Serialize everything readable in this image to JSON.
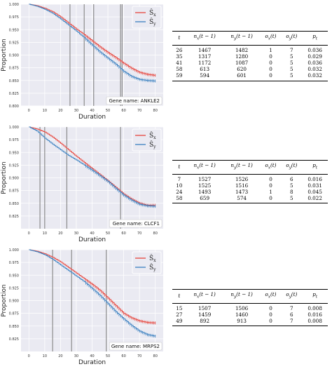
{
  "legend": {
    "x_label": "Ŝ",
    "x_sub": "x",
    "y_label": "Ŝ",
    "y_sub": "y"
  },
  "colors": {
    "x": "#e8453c",
    "y": "#3a80c0",
    "plot_bg": "#eaeaf2",
    "grid": "#ffffff",
    "vline": "#8c8c8c"
  },
  "table_headers": [
    "t",
    "nx(t − 1)",
    "ny(t − 1)",
    "ox(t)",
    "oy(t)",
    "pt"
  ],
  "panels": [
    {
      "gene_label": "Gene name: ANKLE2",
      "table": [
        [
          "26",
          "1467",
          "1482",
          "1",
          "7",
          "0.036"
        ],
        [
          "35",
          "1317",
          "1280",
          "0",
          "5",
          "0.029"
        ],
        [
          "41",
          "1172",
          "1087",
          "0",
          "5",
          "0.036"
        ],
        [
          "58",
          "613",
          "620",
          "0",
          "5",
          "0.032"
        ],
        [
          "59",
          "594",
          "601",
          "0",
          "5",
          "0.032"
        ]
      ]
    },
    {
      "gene_label": "Gene name: CLCF1",
      "table": [
        [
          "7",
          "1527",
          "1526",
          "0",
          "6",
          "0.016"
        ],
        [
          "10",
          "1525",
          "1516",
          "0",
          "5",
          "0.031"
        ],
        [
          "24",
          "1493",
          "1473",
          "1",
          "8",
          "0.045"
        ],
        [
          "58",
          "659",
          "574",
          "0",
          "5",
          "0.022"
        ]
      ]
    },
    {
      "gene_label": "Gene name: MRPS2",
      "table": [
        [
          "15",
          "1507",
          "1506",
          "0",
          "7",
          "0.008"
        ],
        [
          "27",
          "1459",
          "1460",
          "0",
          "6",
          "0.016"
        ],
        [
          "49",
          "892",
          "913",
          "0",
          "7",
          "0.008"
        ]
      ]
    }
  ],
  "chart_data": [
    {
      "type": "line",
      "xlabel": "Duration",
      "ylabel": "Proportion",
      "xlim": [
        -5,
        85
      ],
      "ylim": [
        0.8,
        1.0
      ],
      "xticks": [
        0,
        10,
        20,
        30,
        40,
        50,
        60,
        70,
        80
      ],
      "yticks": [
        0.8,
        0.825,
        0.85,
        0.875,
        0.9,
        0.925,
        0.95,
        0.975,
        1.0
      ],
      "ytick_labels": [
        "0.800",
        "0.825",
        "0.850",
        "0.875",
        "0.900",
        "0.925",
        "0.950",
        "0.975",
        "1.000"
      ],
      "vlines": [
        26,
        35,
        41,
        58,
        59
      ],
      "series": [
        {
          "name": "Ŝx",
          "x": [
            0,
            5,
            10,
            15,
            20,
            25,
            30,
            35,
            40,
            45,
            50,
            55,
            60,
            65,
            70,
            75,
            80
          ],
          "values": [
            1.0,
            0.997,
            0.992,
            0.985,
            0.975,
            0.963,
            0.951,
            0.94,
            0.928,
            0.916,
            0.905,
            0.895,
            0.884,
            0.874,
            0.866,
            0.862,
            0.86
          ]
        },
        {
          "name": "Ŝy",
          "x": [
            0,
            5,
            10,
            15,
            20,
            25,
            30,
            35,
            40,
            45,
            50,
            55,
            60,
            65,
            70,
            75,
            80
          ],
          "values": [
            1.0,
            0.996,
            0.99,
            0.982,
            0.971,
            0.959,
            0.947,
            0.934,
            0.92,
            0.906,
            0.894,
            0.882,
            0.868,
            0.858,
            0.852,
            0.85,
            0.849
          ]
        }
      ]
    },
    {
      "type": "line",
      "xlabel": "Duration",
      "ylabel": "Proportion",
      "xlim": [
        -5,
        85
      ],
      "ylim": [
        0.8,
        1.0
      ],
      "xticks": [
        0,
        10,
        20,
        30,
        40,
        50,
        60,
        70,
        80
      ],
      "yticks": [
        0.825,
        0.85,
        0.875,
        0.9,
        0.925,
        0.95,
        0.975,
        1.0
      ],
      "ytick_labels": [
        "0.825",
        "0.850",
        "0.875",
        "0.900",
        "0.925",
        "0.950",
        "0.975",
        "1.000"
      ],
      "vlines": [
        7,
        10,
        24,
        58
      ],
      "series": [
        {
          "name": "Ŝx",
          "x": [
            0,
            5,
            10,
            15,
            20,
            25,
            30,
            35,
            40,
            45,
            50,
            55,
            60,
            65,
            70,
            75,
            80
          ],
          "values": [
            1.0,
            0.996,
            0.99,
            0.98,
            0.968,
            0.955,
            0.942,
            0.93,
            0.918,
            0.906,
            0.894,
            0.881,
            0.868,
            0.858,
            0.85,
            0.846,
            0.846
          ]
        },
        {
          "name": "Ŝy",
          "x": [
            0,
            5,
            10,
            15,
            20,
            25,
            30,
            35,
            40,
            45,
            50,
            55,
            60,
            65,
            70,
            75,
            80
          ],
          "values": [
            1.0,
            0.992,
            0.978,
            0.966,
            0.955,
            0.944,
            0.935,
            0.925,
            0.915,
            0.904,
            0.893,
            0.879,
            0.866,
            0.856,
            0.848,
            0.845,
            0.844
          ]
        }
      ]
    },
    {
      "type": "line",
      "xlabel": "Duration",
      "ylabel": "Proportion",
      "xlim": [
        -5,
        85
      ],
      "ylim": [
        0.8,
        1.0
      ],
      "xticks": [
        0,
        10,
        20,
        30,
        40,
        50,
        60,
        70,
        80
      ],
      "yticks": [
        0.825,
        0.85,
        0.875,
        0.9,
        0.925,
        0.95,
        0.975,
        1.0
      ],
      "ytick_labels": [
        "0.825",
        "0.850",
        "0.875",
        "0.900",
        "0.925",
        "0.950",
        "0.975",
        "1.000"
      ],
      "vlines": [
        15,
        27,
        49
      ],
      "series": [
        {
          "name": "Ŝx",
          "x": [
            0,
            5,
            10,
            15,
            20,
            25,
            30,
            35,
            40,
            45,
            50,
            55,
            60,
            65,
            70,
            75,
            80
          ],
          "values": [
            1.0,
            0.997,
            0.992,
            0.985,
            0.976,
            0.965,
            0.954,
            0.943,
            0.932,
            0.92,
            0.905,
            0.89,
            0.875,
            0.866,
            0.86,
            0.857,
            0.856
          ]
        },
        {
          "name": "Ŝy",
          "x": [
            0,
            5,
            10,
            15,
            20,
            25,
            30,
            35,
            40,
            45,
            50,
            55,
            60,
            65,
            70,
            75,
            80
          ],
          "values": [
            1.0,
            0.996,
            0.99,
            0.981,
            0.97,
            0.959,
            0.948,
            0.937,
            0.924,
            0.91,
            0.894,
            0.878,
            0.864,
            0.851,
            0.84,
            0.833,
            0.83
          ]
        }
      ]
    }
  ]
}
